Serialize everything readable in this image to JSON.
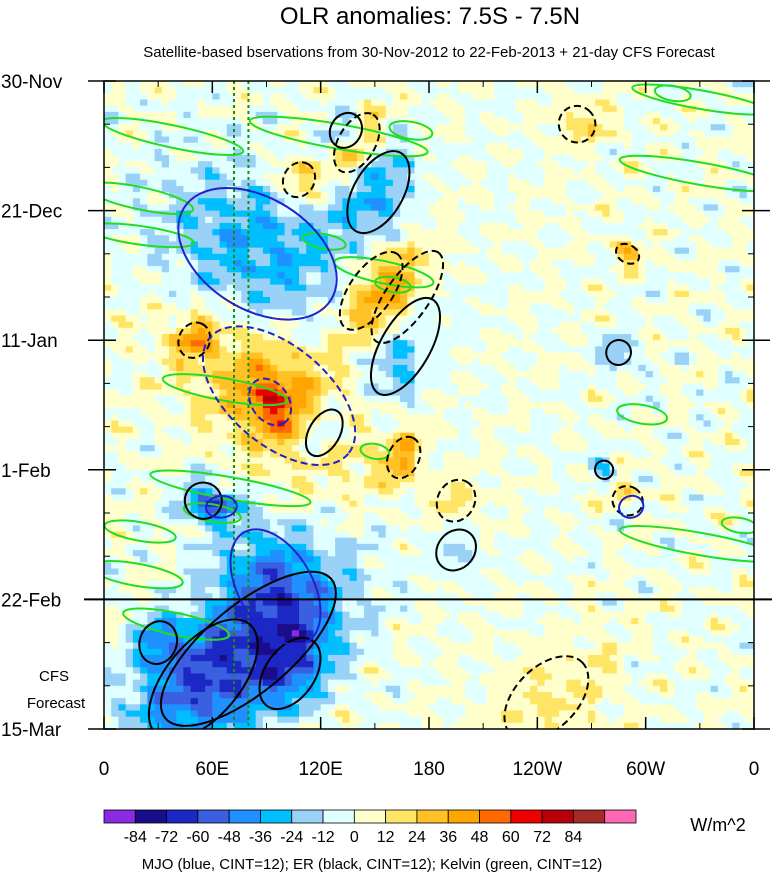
{
  "chart_data": {
    "type": "heatmap",
    "title": "OLR anomalies: 7.5S - 7.5N",
    "subtitle": "Satellite-based bservations from 30-Nov-2012 to 22-Feb-2013 + 21-day CFS Forecast",
    "x_ticks": [
      "0",
      "60E",
      "120E",
      "180",
      "120W",
      "60W",
      "0"
    ],
    "x_tick_longitudes_east": [
      0,
      60,
      120,
      180,
      240,
      300,
      360
    ],
    "y_ticks": [
      "30-Nov",
      "21-Dec",
      "11-Jan",
      "1-Feb",
      "22-Feb",
      "15-Mar"
    ],
    "y_tick_days": [
      0,
      21,
      42,
      63,
      84,
      105
    ],
    "forecast_start_day": 84,
    "forecast_label_line1": "CFS",
    "forecast_label_line2": "Forecast",
    "colorbar": {
      "unit": "W/m^2",
      "labels": [
        "-84",
        "-72",
        "-60",
        "-48",
        "-36",
        "-24",
        "-12",
        "0",
        "12",
        "24",
        "36",
        "48",
        "60",
        "72",
        "84"
      ],
      "colors": [
        "#8a2be2",
        "#1a0d8c",
        "#1c28c4",
        "#3a5fe0",
        "#1e90ff",
        "#00bfff",
        "#9ad2f7",
        "#e0ffff",
        "#ffffcc",
        "#ffe566",
        "#ffc125",
        "#ffa500",
        "#ff6a00",
        "#ee0000",
        "#b8000a",
        "#a52a2a",
        "#ff69b4"
      ]
    },
    "footer": "MJO (blue, CINT=12); ER (black, CINT=12); Kelvin (green, CINT=12)",
    "reference_lines_lon": [
      72,
      80
    ],
    "mjo_contours": [
      {
        "sign": "neg",
        "center": [
          85,
          28
        ],
        "rx": 48,
        "ry": 9,
        "angle": 32
      },
      {
        "sign": "pos",
        "center": [
          97,
          51
        ],
        "rx": 50,
        "ry": 8,
        "angle": 40
      },
      {
        "sign": "pos",
        "center": [
          92,
          52
        ],
        "rx": 14,
        "ry": 3,
        "angle": 55
      },
      {
        "sign": "neg",
        "center": [
          95,
          82
        ],
        "rx": 35,
        "ry": 6,
        "angle": 60
      },
      {
        "sign": "neg",
        "center": [
          65,
          69
        ],
        "rx": 6,
        "ry": 2.5,
        "angle": 85
      },
      {
        "sign": "neg",
        "center": [
          292,
          69
        ],
        "rx": 6,
        "ry": 2,
        "angle": 70
      }
    ],
    "er_contours": [
      {
        "sign": "neg",
        "center": [
          80,
          92
        ],
        "rx": 60,
        "ry": 7,
        "angle": -40
      },
      {
        "sign": "neg",
        "center": [
          55,
          97
        ],
        "rx": 40,
        "ry": 6,
        "angle": -50
      },
      {
        "sign": "pos",
        "center": [
          140,
          10
        ],
        "rx": 18,
        "ry": 3,
        "angle": -60
      },
      {
        "sign": "pos",
        "center": [
          168,
          35
        ],
        "rx": 30,
        "ry": 3.5,
        "angle": -55
      },
      {
        "sign": "pos",
        "center": [
          148,
          34
        ],
        "rx": 25,
        "ry": 3.5,
        "angle": -55
      },
      {
        "sign": "pos",
        "center": [
          108,
          16
        ],
        "rx": 10,
        "ry": 2.5,
        "angle": -60
      },
      {
        "sign": "pos",
        "center": [
          50,
          42
        ],
        "rx": 10,
        "ry": 2.5,
        "angle": -65
      },
      {
        "sign": "pos",
        "center": [
          166,
          61
        ],
        "rx": 12,
        "ry": 2.5,
        "angle": -65
      },
      {
        "sign": "pos",
        "center": [
          195,
          68
        ],
        "rx": 12,
        "ry": 3,
        "angle": -60
      },
      {
        "sign": "pos",
        "center": [
          245,
          100
        ],
        "rx": 28,
        "ry": 5,
        "angle": -45
      },
      {
        "sign": "pos",
        "center": [
          262,
          7
        ],
        "rx": 10,
        "ry": 3,
        "angle": -50
      },
      {
        "sign": "pos",
        "center": [
          290,
          28
        ],
        "rx": 5,
        "ry": 2,
        "angle": -60
      },
      {
        "sign": "pos",
        "center": [
          290,
          68
        ],
        "rx": 8,
        "ry": 2.5,
        "angle": -60
      },
      {
        "sign": "neg",
        "center": [
          152,
          18
        ],
        "rx": 25,
        "ry": 4,
        "angle": -60
      },
      {
        "sign": "neg",
        "center": [
          134,
          8
        ],
        "rx": 10,
        "ry": 2.5,
        "angle": -60
      },
      {
        "sign": "neg",
        "center": [
          167,
          43
        ],
        "rx": 30,
        "ry": 4,
        "angle": -60
      },
      {
        "sign": "neg",
        "center": [
          122,
          57
        ],
        "rx": 14,
        "ry": 2.5,
        "angle": -60
      },
      {
        "sign": "neg",
        "center": [
          103,
          96
        ],
        "rx": 22,
        "ry": 4,
        "angle": -55
      },
      {
        "sign": "neg",
        "center": [
          195,
          76
        ],
        "rx": 12,
        "ry": 3,
        "angle": -50
      },
      {
        "sign": "neg",
        "center": [
          55,
          68
        ],
        "rx": 10,
        "ry": 3,
        "angle": -70
      },
      {
        "sign": "neg",
        "center": [
          30,
          91
        ],
        "rx": 12,
        "ry": 3,
        "angle": -70
      },
      {
        "sign": "neg",
        "center": [
          285,
          44
        ],
        "rx": 7,
        "ry": 2,
        "angle": -60
      },
      {
        "sign": "neg",
        "center": [
          277,
          63
        ],
        "rx": 5,
        "ry": 1.5,
        "angle": -40
      }
    ],
    "kelvin_contours": [
      {
        "center": [
          38,
          9
        ],
        "rx": 40,
        "ry": 1.8,
        "angle": 12
      },
      {
        "center": [
          20,
          19
        ],
        "rx": 30,
        "ry": 1.8,
        "angle": 12
      },
      {
        "center": [
          130,
          9
        ],
        "rx": 50,
        "ry": 2,
        "angle": 10
      },
      {
        "center": [
          170,
          8
        ],
        "rx": 12,
        "ry": 1.4,
        "angle": 10
      },
      {
        "center": [
          20,
          25
        ],
        "rx": 30,
        "ry": 1.5,
        "angle": 8
      },
      {
        "center": [
          155,
          31
        ],
        "rx": 28,
        "ry": 1.8,
        "angle": 12
      },
      {
        "center": [
          160,
          33
        ],
        "rx": 10,
        "ry": 1.2,
        "angle": 10
      },
      {
        "center": [
          122,
          26
        ],
        "rx": 12,
        "ry": 1.2,
        "angle": 10
      },
      {
        "center": [
          67,
          50
        ],
        "rx": 35,
        "ry": 1.8,
        "angle": 10
      },
      {
        "center": [
          150,
          60
        ],
        "rx": 8,
        "ry": 1.2,
        "angle": 10
      },
      {
        "center": [
          70,
          66
        ],
        "rx": 45,
        "ry": 1.8,
        "angle": 10
      },
      {
        "center": [
          60,
          70
        ],
        "rx": 16,
        "ry": 1.4,
        "angle": 10
      },
      {
        "center": [
          20,
          73
        ],
        "rx": 20,
        "ry": 1.5,
        "angle": 10
      },
      {
        "center": [
          18,
          80
        ],
        "rx": 26,
        "ry": 1.8,
        "angle": 10
      },
      {
        "center": [
          40,
          88
        ],
        "rx": 30,
        "ry": 1.8,
        "angle": 12
      },
      {
        "center": [
          330,
          3
        ],
        "rx": 38,
        "ry": 1.5,
        "angle": 10
      },
      {
        "center": [
          330,
          15
        ],
        "rx": 45,
        "ry": 1.8,
        "angle": 10
      },
      {
        "center": [
          298,
          54
        ],
        "rx": 14,
        "ry": 1.5,
        "angle": 10
      },
      {
        "center": [
          330,
          75
        ],
        "rx": 45,
        "ry": 1.8,
        "angle": 10
      },
      {
        "center": [
          315,
          2
        ],
        "rx": 10,
        "ry": 1.2,
        "angle": 10
      },
      {
        "center": [
          352,
          72
        ],
        "rx": 10,
        "ry": 1.2,
        "angle": 10
      }
    ]
  }
}
